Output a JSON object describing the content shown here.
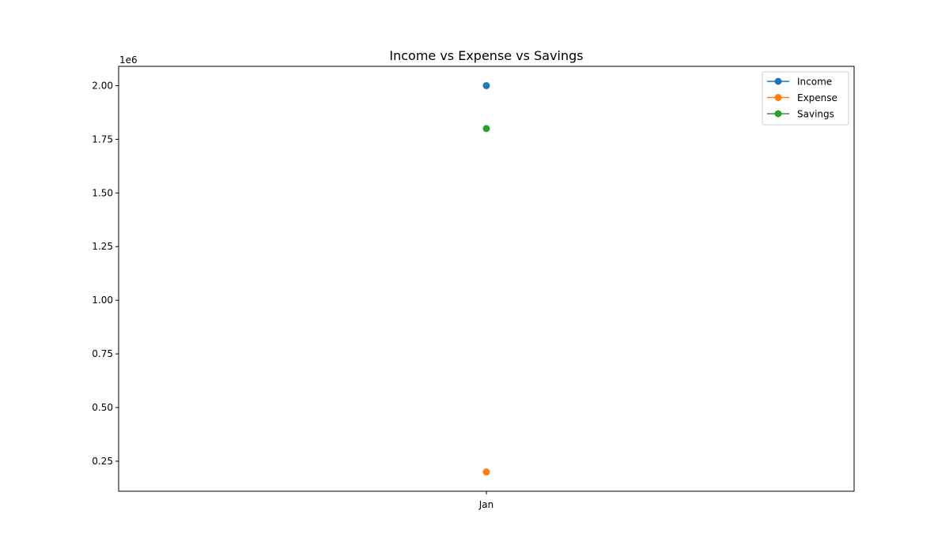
{
  "chart_data": {
    "type": "line",
    "title": "Income vs Expense vs Savings",
    "xlabel": "",
    "ylabel": "",
    "categories": [
      "Jan"
    ],
    "series": [
      {
        "name": "Income",
        "values": [
          2000000
        ],
        "color": "#1f77b4"
      },
      {
        "name": "Expense",
        "values": [
          200000
        ],
        "color": "#ff7f0e"
      },
      {
        "name": "Savings",
        "values": [
          1800000
        ],
        "color": "#2ca02c"
      }
    ],
    "ylim": [
      110000,
      2090000
    ],
    "yticks": [
      250000,
      500000,
      750000,
      1000000,
      1250000,
      1500000,
      1750000,
      2000000
    ],
    "ytick_labels": [
      "0.25",
      "0.50",
      "0.75",
      "1.00",
      "1.25",
      "1.50",
      "1.75",
      "2.00"
    ],
    "y_offset_label": "1e6",
    "grid": false,
    "legend_position": "top-right",
    "marker": "circle"
  }
}
